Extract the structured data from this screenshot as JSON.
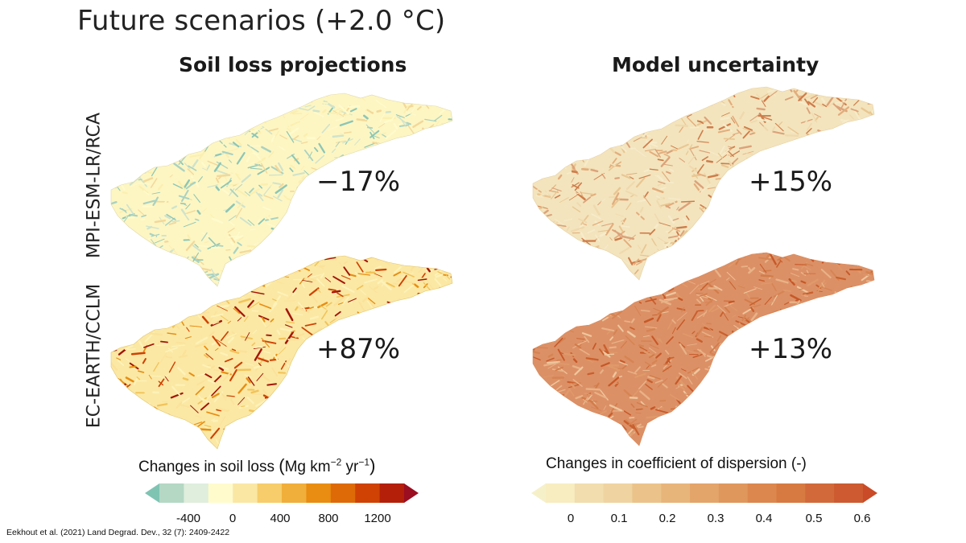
{
  "title": "Future scenarios (+2.0 °C)",
  "columns": {
    "left": "Soil loss projections",
    "right": "Model uncertainty"
  },
  "rows": {
    "top": "MPI-ESM-LR/RCA",
    "bottom": "EC-EARTH/CCLM"
  },
  "panels": {
    "top_left": {
      "value": "−17%"
    },
    "top_right": {
      "value": "+15%"
    },
    "bottom_left": {
      "value": "+87%"
    },
    "bottom_right": {
      "value": "+13%"
    }
  },
  "colorbars": {
    "soil_loss": {
      "title_prefix": "Changes in soil loss ",
      "unit_open": "(",
      "unit_mg": "Mg km",
      "unit_exp1": "−2",
      "unit_yr": " yr",
      "unit_exp2": "−1",
      "unit_close": ")",
      "ticks": [
        "-400",
        "0",
        "400",
        "800",
        "1200"
      ],
      "colors": [
        "#7fc4b3",
        "#b4d8c4",
        "#dfeedd",
        "#fffbcc",
        "#fbe7a4",
        "#f6cd6a",
        "#f0ae3a",
        "#e88d12",
        "#de6a07",
        "#cf4204",
        "#b31f09",
        "#9b0d20"
      ]
    },
    "dispersion": {
      "title": "Changes in coefficient of dispersion (-)",
      "ticks": [
        "0",
        "0.1",
        "0.2",
        "0.3",
        "0.4",
        "0.5",
        "0.6"
      ],
      "colors": [
        "#f6f0c9",
        "#f7edc0",
        "#f1ddae",
        "#efd3a0",
        "#ebc38a",
        "#e7b57a",
        "#e3a56a",
        "#df975c",
        "#db874d",
        "#d77a42",
        "#d2693a",
        "#cd5a30",
        "#c94b28"
      ]
    }
  },
  "citation": "Eekhout et al. (2021) Land Degrad. Dev., 32 (7): 2409-2422"
}
